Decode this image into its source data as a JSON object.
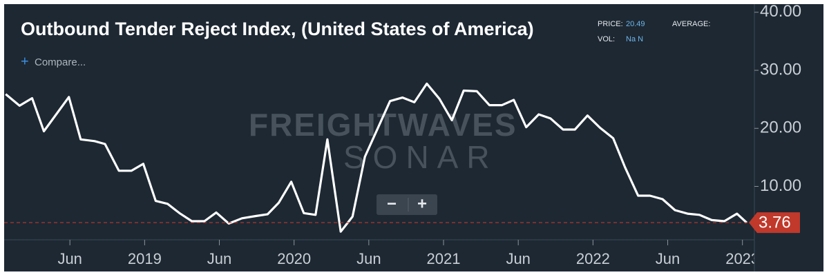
{
  "chart_data": {
    "type": "line",
    "title": "Outbound Tender Reject Index, (United States of America)",
    "x": [
      2018.07,
      2018.163,
      2018.247,
      2018.326,
      2018.493,
      2018.572,
      2018.665,
      2018.735,
      2018.828,
      2018.912,
      2018.991,
      2019.074,
      2019.153,
      2019.233,
      2019.316,
      2019.4,
      2019.479,
      2019.563,
      2019.651,
      2019.744,
      2019.823,
      2019.898,
      2019.981,
      2020.065,
      2020.144,
      2020.223,
      2020.312,
      2020.391,
      2020.474,
      2020.558,
      2020.642,
      2020.726,
      2020.805,
      2020.888,
      2020.972,
      2021.056,
      2021.135,
      2021.223,
      2021.307,
      2021.391,
      2021.47,
      2021.553,
      2021.637,
      2021.716,
      2021.8,
      2021.879,
      2021.963,
      2022.047,
      2022.135,
      2022.214,
      2022.302,
      2022.381,
      2022.465,
      2022.549,
      2022.633,
      2022.712,
      2022.795,
      2022.879,
      2022.963,
      2023.028
    ],
    "series": [
      {
        "name": "Outbound Tender Reject Index",
        "color": "#ffffff",
        "values": [
          25.9,
          23.9,
          25.2,
          19.5,
          25.4,
          18.1,
          17.8,
          17.3,
          12.7,
          12.7,
          13.9,
          7.5,
          7.0,
          5.4,
          4.0,
          4.0,
          5.5,
          3.6,
          4.5,
          4.9,
          5.2,
          7.2,
          10.8,
          5.4,
          5.1,
          18.1,
          2.2,
          4.8,
          15.1,
          19.9,
          24.7,
          25.3,
          24.5,
          27.7,
          25.1,
          21.4,
          26.5,
          26.4,
          24.0,
          24.0,
          24.9,
          20.2,
          22.4,
          21.7,
          19.8,
          19.8,
          22.2,
          20.1,
          18.3,
          13.3,
          8.4,
          8.4,
          7.8,
          5.9,
          5.3,
          5.1,
          4.2,
          4.0,
          5.3,
          3.76
        ]
      }
    ],
    "xlim": [
      2018.06,
      2023.08
    ],
    "xticks": [
      {
        "value": 2018.5,
        "label": "Jun"
      },
      {
        "value": 2019,
        "label": "2019"
      },
      {
        "value": 2019.5,
        "label": "Jun"
      },
      {
        "value": 2020,
        "label": "2020"
      },
      {
        "value": 2020.5,
        "label": "Jun"
      },
      {
        "value": 2021,
        "label": "2021"
      },
      {
        "value": 2021.5,
        "label": "Jun"
      },
      {
        "value": 2022,
        "label": "2022"
      },
      {
        "value": 2022.5,
        "label": "Jun"
      },
      {
        "value": 2023,
        "label": "2023"
      }
    ],
    "ylim": [
      0.8,
      41.4
    ],
    "yticks": [
      {
        "value": 10,
        "label": "10.00"
      },
      {
        "value": 20,
        "label": "20.00"
      },
      {
        "value": 30,
        "label": "30.00"
      },
      {
        "value": 40,
        "label": "40.00"
      }
    ],
    "last_value_color": "#c0392b",
    "grid": false
  },
  "info_panel": {
    "price_label": "PRICE:",
    "price": 20.49,
    "average_label": "AVERAGE:",
    "vol_label": "VOL:",
    "vol": "Na N"
  },
  "compare_button": "Compare...",
  "watermark": {
    "brand": "FREIGHTWAVES",
    "product": "SONAR"
  }
}
